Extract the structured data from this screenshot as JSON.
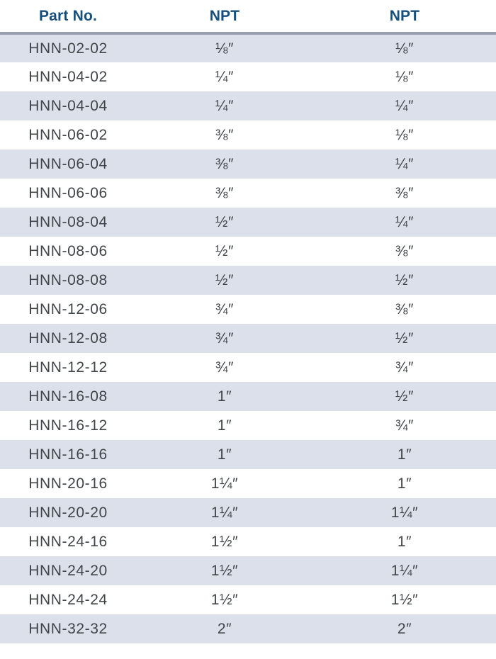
{
  "table": {
    "columns": [
      {
        "key": "part",
        "label": "Part No."
      },
      {
        "key": "npt1",
        "label": "NPT"
      },
      {
        "key": "npt2",
        "label": "NPT"
      }
    ],
    "rows": [
      {
        "part": "HNN-02-02",
        "npt1": "⅛″",
        "npt2": "⅛″"
      },
      {
        "part": "HNN-04-02",
        "npt1": "¼″",
        "npt2": "⅛″"
      },
      {
        "part": "HNN-04-04",
        "npt1": "¼″",
        "npt2": "¼″"
      },
      {
        "part": "HNN-06-02",
        "npt1": "⅜″",
        "npt2": "⅛″"
      },
      {
        "part": "HNN-06-04",
        "npt1": "⅜″",
        "npt2": "¼″"
      },
      {
        "part": "HNN-06-06",
        "npt1": "⅜″",
        "npt2": "⅜″"
      },
      {
        "part": "HNN-08-04",
        "npt1": "½″",
        "npt2": "¼″"
      },
      {
        "part": "HNN-08-06",
        "npt1": "½″",
        "npt2": "⅜″"
      },
      {
        "part": "HNN-08-08",
        "npt1": "½″",
        "npt2": "½″"
      },
      {
        "part": "HNN-12-06",
        "npt1": "¾″",
        "npt2": "⅜″"
      },
      {
        "part": "HNN-12-08",
        "npt1": "¾″",
        "npt2": "½″"
      },
      {
        "part": "HNN-12-12",
        "npt1": "¾″",
        "npt2": "¾″"
      },
      {
        "part": "HNN-16-08",
        "npt1": "1″",
        "npt2": "½″"
      },
      {
        "part": "HNN-16-12",
        "npt1": "1″",
        "npt2": "¾″"
      },
      {
        "part": "HNN-16-16",
        "npt1": "1″",
        "npt2": "1″"
      },
      {
        "part": "HNN-20-16",
        "npt1": "1¼″",
        "npt2": "1″"
      },
      {
        "part": "HNN-20-20",
        "npt1": "1¼″",
        "npt2": "1¼″"
      },
      {
        "part": "HNN-24-16",
        "npt1": "1½″",
        "npt2": "1″"
      },
      {
        "part": "HNN-24-20",
        "npt1": "1½″",
        "npt2": "1¼″"
      },
      {
        "part": "HNN-24-24",
        "npt1": "1½″",
        "npt2": "1½″"
      },
      {
        "part": "HNN-32-32",
        "npt1": "2″",
        "npt2": "2″"
      }
    ]
  },
  "colors": {
    "header_text": "#164E7C",
    "divider_line": "#969EB0",
    "row_shade": "#DCE0EA",
    "row_text": "#414449",
    "background": "#FFFFFF"
  }
}
